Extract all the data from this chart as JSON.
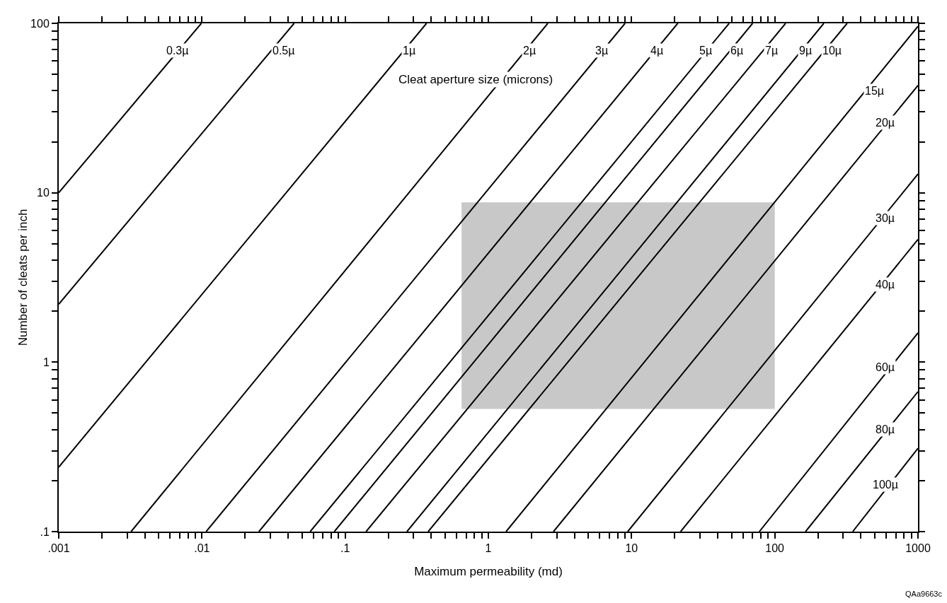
{
  "chart_data": {
    "type": "line",
    "xlabel": "Maximum permeability (md)",
    "ylabel": "Number of cleats per inch",
    "log": "xy",
    "grid": false,
    "marker": "none",
    "line_style": "solid",
    "xlim": [
      0.001,
      1000
    ],
    "ylim": [
      0.1,
      100
    ],
    "xticks": [
      {
        "value": 0.001,
        "label": ".001"
      },
      {
        "value": 0.002,
        "label": null
      },
      {
        "value": 0.003,
        "label": null
      },
      {
        "value": 0.004,
        "label": null
      },
      {
        "value": 0.005,
        "label": null
      },
      {
        "value": 0.006,
        "label": null
      },
      {
        "value": 0.007,
        "label": null
      },
      {
        "value": 0.008,
        "label": null
      },
      {
        "value": 0.009,
        "label": null
      },
      {
        "value": 0.01,
        "label": ".01"
      },
      {
        "value": 0.02,
        "label": null
      },
      {
        "value": 0.03,
        "label": null
      },
      {
        "value": 0.04,
        "label": null
      },
      {
        "value": 0.05,
        "label": null
      },
      {
        "value": 0.06,
        "label": null
      },
      {
        "value": 0.07,
        "label": null
      },
      {
        "value": 0.08,
        "label": null
      },
      {
        "value": 0.09,
        "label": null
      },
      {
        "value": 0.1,
        "label": ".1"
      },
      {
        "value": 0.2,
        "label": null
      },
      {
        "value": 0.3,
        "label": null
      },
      {
        "value": 0.4,
        "label": null
      },
      {
        "value": 0.5,
        "label": null
      },
      {
        "value": 0.6,
        "label": null
      },
      {
        "value": 0.7,
        "label": null
      },
      {
        "value": 0.8,
        "label": null
      },
      {
        "value": 0.9,
        "label": null
      },
      1,
      {
        "value": 2,
        "label": null
      },
      {
        "value": 3,
        "label": null
      },
      {
        "value": 4,
        "label": null
      },
      {
        "value": 5,
        "label": null
      },
      {
        "value": 6,
        "label": null
      },
      {
        "value": 7,
        "label": null
      },
      {
        "value": 8,
        "label": null
      },
      {
        "value": 9,
        "label": null
      },
      10,
      {
        "value": 20,
        "label": null
      },
      {
        "value": 30,
        "label": null
      },
      {
        "value": 40,
        "label": null
      },
      {
        "value": 50,
        "label": null
      },
      {
        "value": 60,
        "label": null
      },
      {
        "value": 70,
        "label": null
      },
      {
        "value": 80,
        "label": null
      },
      {
        "value": 90,
        "label": null
      },
      100,
      {
        "value": 200,
        "label": null
      },
      {
        "value": 300,
        "label": null
      },
      {
        "value": 400,
        "label": null
      },
      {
        "value": 500,
        "label": null
      },
      {
        "value": 600,
        "label": null
      },
      {
        "value": 700,
        "label": null
      },
      {
        "value": 800,
        "label": null
      },
      {
        "value": 900,
        "label": null
      },
      1000
    ],
    "yticks": [
      {
        "value": 0.1,
        "label": ".1"
      },
      {
        "value": 0.2,
        "label": null
      },
      {
        "value": 0.3,
        "label": null
      },
      {
        "value": 0.4,
        "label": null
      },
      {
        "value": 0.5,
        "label": null
      },
      {
        "value": 0.6,
        "label": null
      },
      {
        "value": 0.7,
        "label": null
      },
      {
        "value": 0.8,
        "label": null
      },
      {
        "value": 0.9,
        "label": null
      },
      1,
      {
        "value": 2,
        "label": null
      },
      {
        "value": 3,
        "label": null
      },
      {
        "value": 4,
        "label": null
      },
      {
        "value": 5,
        "label": null
      },
      {
        "value": 6,
        "label": null
      },
      {
        "value": 7,
        "label": null
      },
      {
        "value": 8,
        "label": null
      },
      {
        "value": 9,
        "label": null
      },
      10,
      {
        "value": 20,
        "label": null
      },
      {
        "value": 30,
        "label": null
      },
      {
        "value": 40,
        "label": null
      },
      {
        "value": 50,
        "label": null
      },
      {
        "value": 60,
        "label": null
      },
      {
        "value": 70,
        "label": null
      },
      {
        "value": 80,
        "label": null
      },
      {
        "value": 90,
        "label": null
      },
      100
    ],
    "series": [
      {
        "color": "#c8c8c8",
        "x": [
          0.65,
          100
        ],
        "values": [
          8.7,
          8.7
        ],
        "lower": [
          0.53,
          0.53
        ],
        "upper": [
          8.7,
          8.7
        ]
      },
      {
        "color": "#000000",
        "x": [
          0.001,
          0.0099
        ],
        "values": [
          10,
          100
        ]
      },
      {
        "color": "#000000",
        "x": [
          0.001,
          0.044
        ],
        "values": [
          2.2,
          100
        ]
      },
      {
        "color": "#000000",
        "x": [
          0.001,
          0.37
        ],
        "values": [
          0.24,
          100
        ]
      },
      {
        "color": "#000000",
        "x": [
          0.0032,
          2.6
        ],
        "values": [
          0.1,
          100
        ]
      },
      {
        "color": "#000000",
        "x": [
          0.0107,
          9
        ],
        "values": [
          0.1,
          100
        ]
      },
      {
        "color": "#000000",
        "x": [
          0.025,
          21
        ],
        "values": [
          0.1,
          100
        ]
      },
      {
        "color": "#000000",
        "x": [
          0.057,
          48
        ],
        "values": [
          0.1,
          100
        ]
      },
      {
        "color": "#000000",
        "x": [
          0.084,
          70
        ],
        "values": [
          0.1,
          100
        ]
      },
      {
        "color": "#000000",
        "x": [
          0.14,
          119
        ],
        "values": [
          0.1,
          100
        ]
      },
      {
        "color": "#000000",
        "x": [
          0.27,
          220
        ],
        "values": [
          0.1,
          100
        ]
      },
      {
        "color": "#000000",
        "x": [
          0.38,
          320
        ],
        "values": [
          0.1,
          100
        ]
      },
      {
        "color": "#000000",
        "x": [
          1.33,
          1000
        ],
        "values": [
          0.1,
          96
        ]
      },
      {
        "color": "#000000",
        "x": [
          2.85,
          1000
        ],
        "values": [
          0.1,
          43
        ]
      },
      {
        "color": "#000000",
        "x": [
          9.4,
          1000
        ],
        "values": [
          0.1,
          12.9
        ]
      },
      {
        "color": "#000000",
        "x": [
          22,
          1000
        ],
        "values": [
          0.1,
          5.3
        ]
      },
      {
        "color": "#000000",
        "x": [
          78,
          1000
        ],
        "values": [
          0.1,
          1.49
        ]
      },
      {
        "color": "#000000",
        "x": [
          164,
          1000
        ],
        "values": [
          0.1,
          0.67
        ]
      },
      {
        "color": "#000000",
        "x": [
          350,
          1000
        ],
        "values": [
          0.1,
          0.31
        ]
      }
    ],
    "annotations": [
      {
        "text": "0.3µ",
        "x": 0.0067,
        "y": 69
      },
      {
        "text": "0.5µ",
        "x": 0.037,
        "y": 69
      },
      {
        "text": "1µ",
        "x": 0.28,
        "y": 69
      },
      {
        "text": "2µ",
        "x": 1.94,
        "y": 69
      },
      {
        "text": "3µ",
        "x": 6.2,
        "y": 69
      },
      {
        "text": "4µ",
        "x": 15,
        "y": 69
      },
      {
        "text": "5µ",
        "x": 33,
        "y": 69
      },
      {
        "text": "6µ",
        "x": 54,
        "y": 69
      },
      {
        "text": "7µ",
        "x": 95,
        "y": 69
      },
      {
        "text": "9µ",
        "x": 164,
        "y": 69
      },
      {
        "text": "10µ",
        "x": 250,
        "y": 69
      },
      "Cleat aperture size (microns)",
      {
        "text": "15µ",
        "x": 495,
        "y": 40
      },
      {
        "text": "20µ",
        "x": 590,
        "y": 26
      },
      {
        "text": "30µ",
        "x": 590,
        "y": 7.1
      },
      {
        "text": "40µ",
        "x": 590,
        "y": 2.86
      },
      {
        "text": "60µ",
        "x": 590,
        "y": 0.93
      },
      {
        "text": "80µ",
        "x": 590,
        "y": 0.4
      },
      {
        "text": "100µ",
        "x": 590,
        "y": 0.19
      },
      "QAa9663c"
    ]
  }
}
